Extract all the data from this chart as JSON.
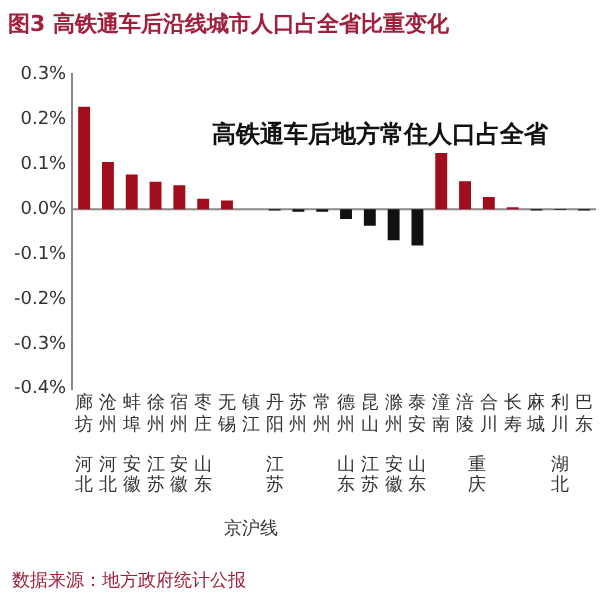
{
  "chart_data": {
    "type": "bar",
    "title": "图3 高铁通车后沿线城市人口占全省比重变化",
    "subtitle": "高铁通车后地方常住人口占全省",
    "categories": [
      "廊坊",
      "沧州",
      "蚌埠",
      "徐州",
      "宿州",
      "枣庄",
      "无锡",
      "镇江",
      "丹阳",
      "苏州",
      "常州",
      "德州",
      "昆山",
      "滁州",
      "泰安",
      "潼南",
      "涪陵",
      "合川",
      "长寿",
      "麻城",
      "利川",
      "巴东"
    ],
    "values": [
      0.228,
      0.105,
      0.077,
      0.061,
      0.053,
      0.023,
      0.019,
      null,
      -0.003,
      -0.006,
      -0.006,
      -0.022,
      -0.037,
      -0.069,
      -0.081,
      0.125,
      0.062,
      0.027,
      0.004,
      -0.003,
      -0.002,
      -0.003
    ],
    "colors": [
      "#a00d1c",
      "#a00d1c",
      "#a00d1c",
      "#a00d1c",
      "#a00d1c",
      "#a00d1c",
      "#a00d1c",
      "#a00d1c",
      "#111111",
      "#111111",
      "#111111",
      "#111111",
      "#111111",
      "#111111",
      "#111111",
      "#a00d1c",
      "#a00d1c",
      "#a00d1c",
      "#a00d1c",
      "#111111",
      "#111111",
      "#111111"
    ],
    "ylim": [
      -0.4,
      0.3
    ],
    "yticks": [
      {
        "value": 0.3,
        "label": "0.3%"
      },
      {
        "value": 0.2,
        "label": "0.2%"
      },
      {
        "value": 0.1,
        "label": "0.1%"
      },
      {
        "value": 0,
        "label": "0.0%"
      },
      {
        "value": -0.1,
        "label": "-0.1%"
      },
      {
        "value": -0.2,
        "label": "-0.2%"
      },
      {
        "value": -0.3,
        "label": "-0.3%"
      },
      {
        "value": -0.4,
        "label": "-0.4%"
      }
    ],
    "grid": false,
    "legend": false,
    "ref_lines": [
      {
        "axis": "y",
        "value": 0,
        "color": "#888888"
      }
    ],
    "annotations": [
      "河北",
      "河北",
      "安徽",
      "江苏",
      "安徽",
      "山东",
      "江苏",
      "山东",
      "江苏",
      "安徽",
      "山东",
      "重庆",
      "湖北",
      "京沪线",
      "数据来源：地方政府统计公报"
    ]
  }
}
